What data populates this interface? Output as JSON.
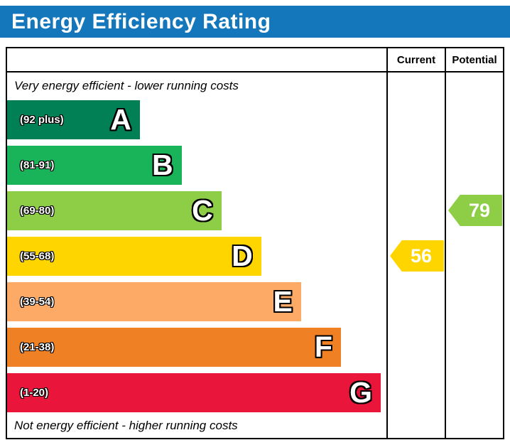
{
  "title": "Energy Efficiency Rating",
  "columns": {
    "current": "Current",
    "potential": "Potential"
  },
  "notes": {
    "top": "Very energy efficient - lower running costs",
    "bottom": "Not energy efficient - higher running costs"
  },
  "bands": [
    {
      "letter": "A",
      "range": "(92 plus)",
      "color": "#008054",
      "width_pct": 35
    },
    {
      "letter": "B",
      "range": "(81-91)",
      "color": "#19b459",
      "width_pct": 46
    },
    {
      "letter": "C",
      "range": "(69-80)",
      "color": "#8dce46",
      "width_pct": 56.5
    },
    {
      "letter": "D",
      "range": "(55-68)",
      "color": "#ffd500",
      "width_pct": 67
    },
    {
      "letter": "E",
      "range": "(39-54)",
      "color": "#fcaa65",
      "width_pct": 77.5
    },
    {
      "letter": "F",
      "range": "(21-38)",
      "color": "#ef8023",
      "width_pct": 88
    },
    {
      "letter": "G",
      "range": "(1-20)",
      "color": "#e9153b",
      "width_pct": 98.5
    }
  ],
  "markers": {
    "current": {
      "value": "56",
      "band": "D",
      "color": "#ffd500"
    },
    "potential": {
      "value": "79",
      "band": "C",
      "color": "#8dce46"
    }
  },
  "chart_data": {
    "type": "bar",
    "title": "Energy Efficiency Rating",
    "categories": [
      "A",
      "B",
      "C",
      "D",
      "E",
      "F",
      "G"
    ],
    "band_ranges": [
      "92 plus",
      "81-91",
      "69-80",
      "55-68",
      "39-54",
      "21-38",
      "1-20"
    ],
    "band_colors": [
      "#008054",
      "#19b459",
      "#8dce46",
      "#ffd500",
      "#fcaa65",
      "#ef8023",
      "#e9153b"
    ],
    "bar_widths_pct": [
      35,
      46,
      56.5,
      67,
      77.5,
      88,
      98.5
    ],
    "column_headers": [
      "Current",
      "Potential"
    ],
    "current_rating": 56,
    "current_band": "D",
    "potential_rating": 79,
    "potential_band": "C",
    "top_label": "Very energy efficient - lower running costs",
    "bottom_label": "Not energy efficient - higher running costs",
    "orientation": "horizontal",
    "legend": "none"
  }
}
